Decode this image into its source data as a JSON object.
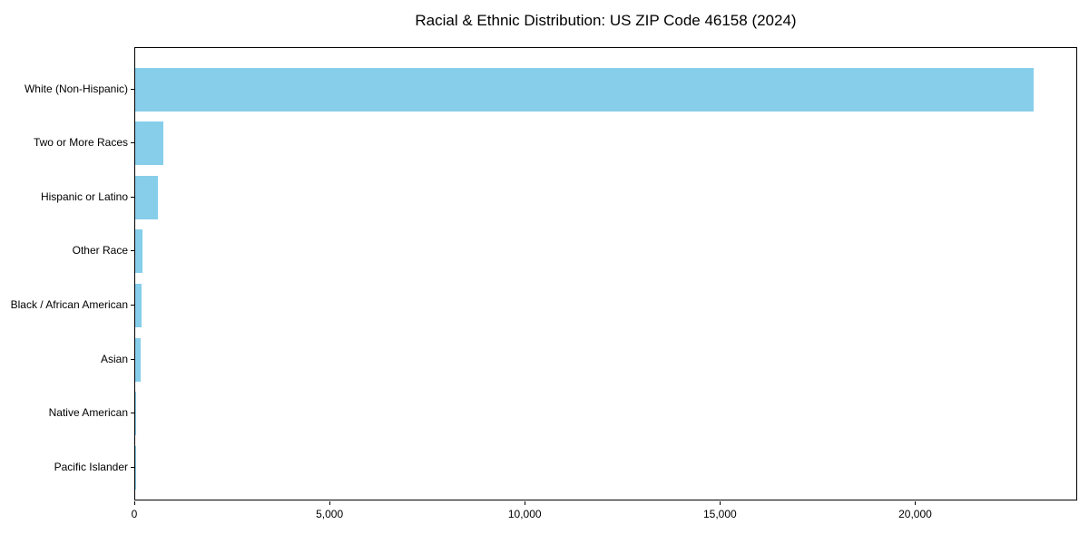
{
  "title": "Racial & Ethnic Distribution: US ZIP Code 46158 (2024)",
  "chart_data": {
    "type": "bar",
    "orientation": "horizontal",
    "title": "Racial & Ethnic Distribution: US ZIP Code 46158 (2024)",
    "xlabel": "",
    "ylabel": "",
    "categories": [
      "White (Non-Hispanic)",
      "Two or More Races",
      "Hispanic or Latino",
      "Other Race",
      "Black / African American",
      "Asian",
      "Native American",
      "Pacific Islander"
    ],
    "values": [
      23000,
      720,
      570,
      185,
      170,
      140,
      20,
      5
    ],
    "xlim": [
      0,
      24150
    ],
    "x_ticks": [
      0,
      5000,
      10000,
      15000,
      20000
    ],
    "x_tick_labels": [
      "0",
      "5,000",
      "10,000",
      "15,000",
      "20,000"
    ],
    "grid": false,
    "legend": null,
    "bar_color": "#87CEEB"
  },
  "colors": {
    "bar": "#87CEEB",
    "axis": "#000000",
    "text": "#000000",
    "background": "#ffffff"
  }
}
